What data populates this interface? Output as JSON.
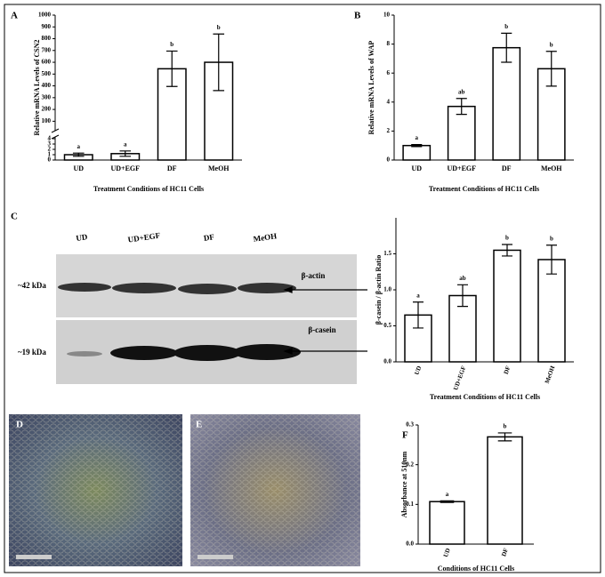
{
  "chart_data": [
    {
      "type": "bar",
      "panel": "A",
      "ylabel": "Relative mRNA Levels of CSN2",
      "xlabel": "Treatment Conditions of HC11 Cells",
      "categories": [
        "UD",
        "UD+EGF",
        "DF",
        "MeOH"
      ],
      "values": [
        1.0,
        1.2,
        545,
        600
      ],
      "errors": [
        0.3,
        0.5,
        150,
        240
      ],
      "annotations": [
        "a",
        "a",
        "b",
        "b"
      ],
      "color": "#ffffff",
      "ylim": [
        0,
        1000
      ],
      "ybreak": [
        4,
        50
      ],
      "yticks": [
        0,
        1,
        2,
        3,
        4,
        100,
        200,
        300,
        400,
        500,
        600,
        700,
        800,
        900,
        1000
      ]
    },
    {
      "type": "bar",
      "panel": "B",
      "ylabel": "Relative mRNA Levels of WAP",
      "xlabel": "Treatment Conditions of HC11 Cells",
      "categories": [
        "UD",
        "UD+EGF",
        "DF",
        "MeOH"
      ],
      "values": [
        1.0,
        3.7,
        7.75,
        6.3
      ],
      "errors": [
        0.07,
        0.55,
        1.0,
        1.2
      ],
      "annotations": [
        "a",
        "ab",
        "b",
        "b"
      ],
      "color": "#ffffff",
      "ylim": [
        0,
        10
      ],
      "yticks": [
        0,
        2,
        4,
        6,
        8,
        10
      ]
    },
    {
      "type": "bar",
      "ylabel": "β-casein / β-actin Ratio",
      "xlabel": "Treatment Conditions of HC11 Cells",
      "categories": [
        "UD",
        "UD+EGF",
        "DF",
        "MeOH"
      ],
      "values": [
        0.65,
        0.92,
        1.55,
        1.42
      ],
      "errors": [
        0.18,
        0.15,
        0.08,
        0.2
      ],
      "annotations": [
        "a",
        "ab",
        "b",
        "b"
      ],
      "color": "#ffffff",
      "ylim": [
        0,
        2
      ],
      "yticks": [
        {
          "value": 0,
          "label": "0.0"
        },
        0.5,
        {
          "value": 1,
          "label": "1.0"
        },
        1.5
      ]
    },
    {
      "type": "bar",
      "panel": "F",
      "ylabel": "Absorbance at 510nm",
      "xlabel": "Conditions of HC11 Cells",
      "categories": [
        "UD",
        "DF"
      ],
      "values": [
        0.107,
        0.27
      ],
      "errors": [
        0.002,
        0.01
      ],
      "annotations": [
        "a",
        "b"
      ],
      "color": "#ffffff",
      "ylim": [
        0,
        0.3
      ],
      "yticks": [
        {
          "value": 0,
          "label": "0.0"
        },
        0.1,
        0.2,
        0.3
      ]
    }
  ],
  "blot": {
    "panel": "C",
    "lanes": [
      "UD",
      "UD+EGF",
      "DF",
      "MeOH"
    ],
    "sizes": [
      "~42 kDa",
      "~19 kDa"
    ],
    "proteins": [
      "β-actin",
      "β-casein"
    ]
  },
  "micrographs": {
    "panels": [
      "D",
      "E"
    ]
  }
}
